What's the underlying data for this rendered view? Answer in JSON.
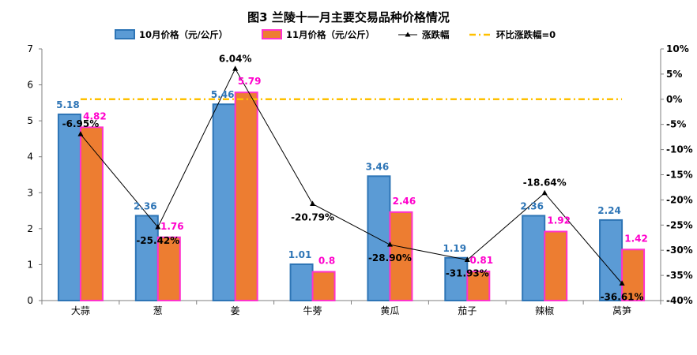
{
  "chart_data": {
    "type": "bar",
    "title": "图3  兰陵十一月主要交易品种价格情况",
    "categories": [
      "大蒜",
      "葱",
      "姜",
      "牛蒡",
      "黄瓜",
      "茄子",
      "辣椒",
      "莴笋"
    ],
    "series": [
      {
        "name": "10月价格（元/公斤）",
        "type": "bar",
        "axis": "left",
        "values": [
          5.18,
          2.36,
          5.46,
          1.01,
          3.46,
          1.19,
          2.36,
          2.24
        ],
        "labels": [
          "5.18",
          "2.36",
          "5.46",
          "1.01",
          "3.46",
          "1.19",
          "2.36",
          "2.24"
        ]
      },
      {
        "name": "11月价格（元/公斤）",
        "type": "bar",
        "axis": "left",
        "values": [
          4.82,
          1.76,
          5.79,
          0.8,
          2.46,
          0.81,
          1.92,
          1.42
        ],
        "labels": [
          "4.82",
          "1.76",
          "5.79",
          "0.8",
          "2.46",
          "0.81",
          "1.92",
          "1.42"
        ]
      },
      {
        "name": "涨跌幅",
        "type": "line",
        "axis": "right",
        "values": [
          -6.95,
          -25.42,
          6.04,
          -20.79,
          -28.9,
          -31.93,
          -18.64,
          -36.61
        ],
        "labels": [
          "-6.95%",
          "-25.42%",
          "6.04%",
          "-20.79%",
          "-28.90%",
          "-31.93%",
          "-18.64%",
          "-36.61%"
        ]
      },
      {
        "name": "环比涨跌幅=0",
        "type": "reference-line",
        "axis": "right",
        "value": 0
      }
    ],
    "y_left": {
      "min": 0,
      "max": 7,
      "ticks": [
        "0",
        "1",
        "2",
        "3",
        "4",
        "5",
        "6",
        "7"
      ]
    },
    "y_right": {
      "min": -40,
      "max": 10,
      "ticks": [
        "10%",
        "5%",
        "0%",
        "-5%",
        "-10%",
        "-15%",
        "-20%",
        "-25%",
        "-30%",
        "-35%",
        "-40%"
      ]
    },
    "legend_position": "top",
    "grid": false,
    "colors": {
      "oct_fill": "#5b9bd5",
      "oct_border": "#2e75b6",
      "nov_fill": "#ed7d31",
      "nov_border": "#ff33cc",
      "oct_label": "#2e75b6",
      "nov_label": "#ff00cc",
      "line": "#000000",
      "reference": "#ffc000"
    }
  }
}
